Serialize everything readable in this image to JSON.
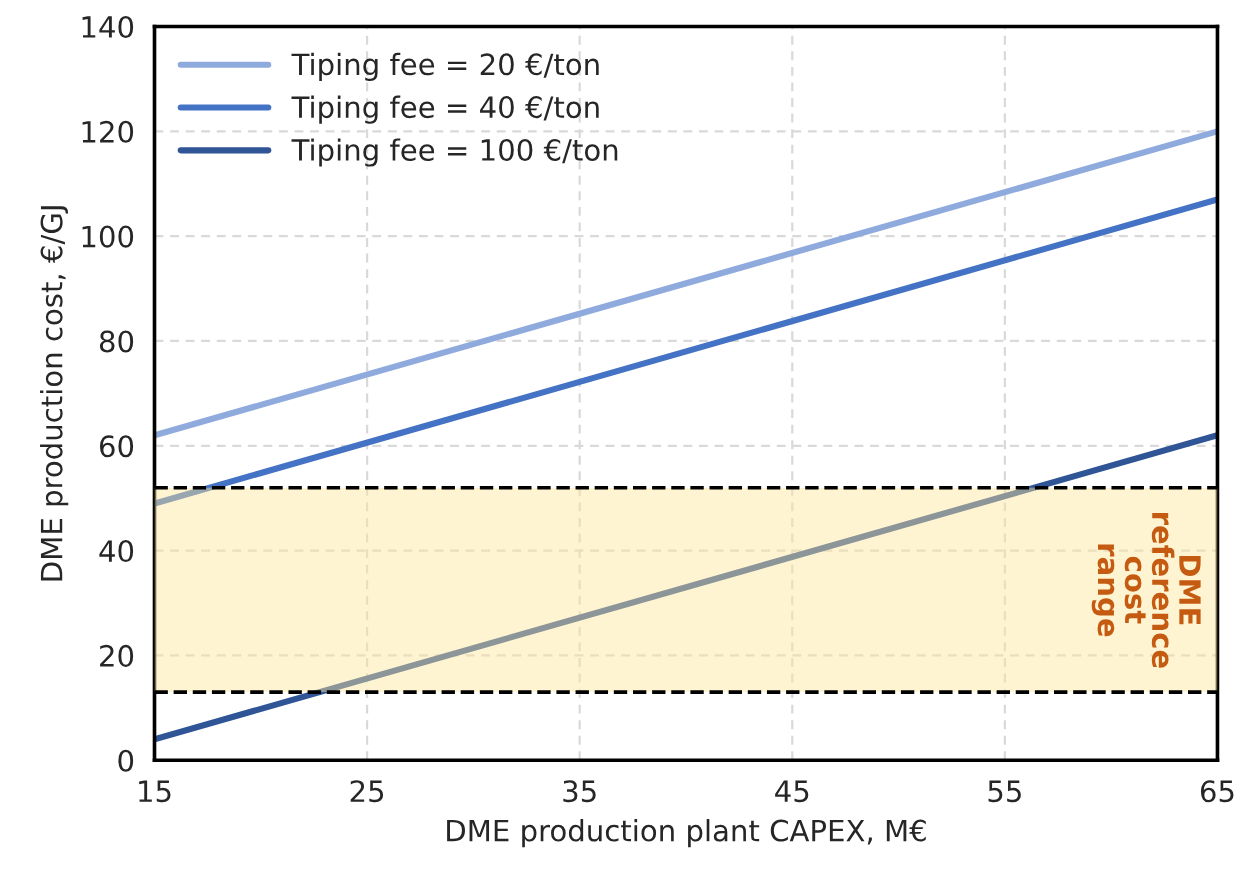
{
  "chart_data": {
    "type": "line",
    "xlabel": "DME production plant CAPEX, M€",
    "ylabel": "DME production cost, €/GJ",
    "x": [
      15,
      65
    ],
    "series": [
      {
        "name": "Tiping fee = 20 €/ton",
        "color": "#8faadc",
        "values": [
          62,
          120
        ]
      },
      {
        "name": "Tiping fee = 40 €/ton",
        "color": "#4472c4",
        "values": [
          49,
          107
        ]
      },
      {
        "name": "Tiping fee = 100 €/ton",
        "color": "#2f5597",
        "values": [
          4,
          62
        ]
      }
    ],
    "bands": [
      {
        "axis": "y",
        "from": 13,
        "to": 52,
        "label": "DME\nreference\ncost\nrange",
        "color": "#ffe699"
      }
    ],
    "ref_lines": [
      {
        "axis": "y",
        "value": 13,
        "color": "#000000",
        "line_style": "dashed"
      },
      {
        "axis": "y",
        "value": 52,
        "color": "#000000",
        "line_style": "dashed"
      }
    ],
    "xlim": [
      15,
      65
    ],
    "xticks": [
      15,
      25,
      35,
      45,
      55,
      65
    ],
    "ylim": [
      0,
      140
    ],
    "yticks": [
      0,
      20,
      40,
      60,
      80,
      100,
      120,
      140
    ],
    "grid": true,
    "legend": "top left",
    "marker": "none",
    "line_style": "solid"
  }
}
